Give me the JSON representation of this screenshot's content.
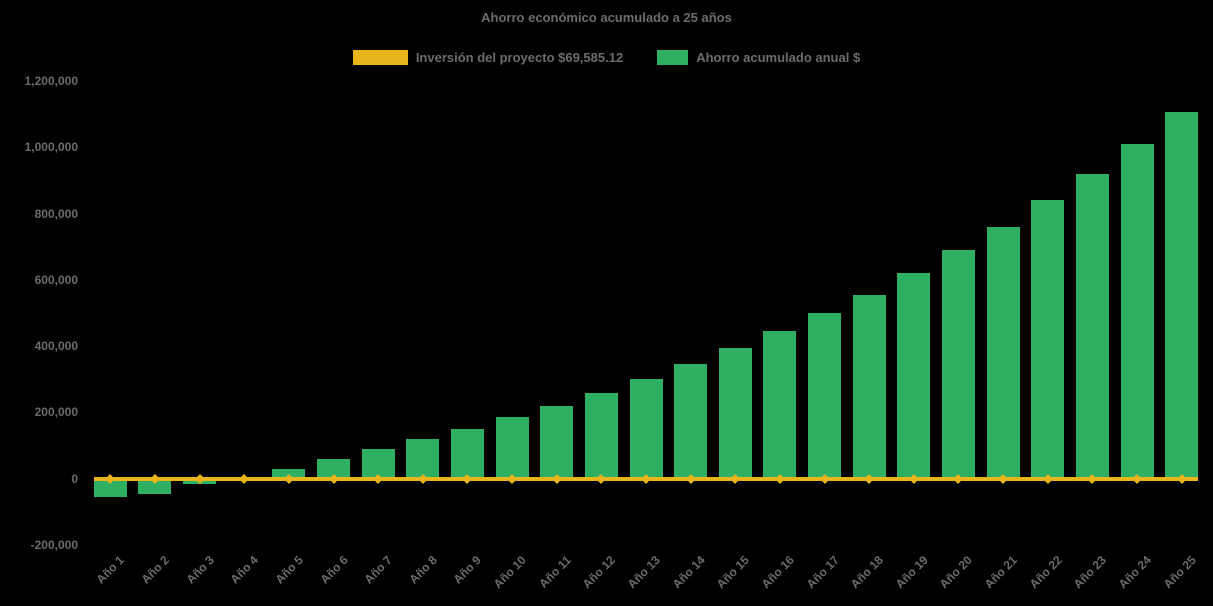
{
  "title": "Ahorro económico acumulado a 25 años",
  "colors": {
    "background": "#000000",
    "bar": "#2FAF62",
    "line": "#E8B61B",
    "text": "#6C6C6C"
  },
  "legend": [
    {
      "label": "Inversión del proyecto $69,585.12",
      "color_key": "line",
      "swatch": "wide-line"
    },
    {
      "label": "Ahorro acumulado anual $",
      "color_key": "bar",
      "swatch": "bar"
    }
  ],
  "investment_amount_text": "$69,585.12",
  "chart_data": {
    "type": "bar",
    "title": "Ahorro económico acumulado a 25 años",
    "categories": [
      "Año 1",
      "Año 2",
      "Año 3",
      "Año 4",
      "Año 5",
      "Año 6",
      "Año 7",
      "Año 8",
      "Año 9",
      "Año 10",
      "Año 11",
      "Año 12",
      "Año 13",
      "Año 14",
      "Año 15",
      "Año 16",
      "Año 17",
      "Año 18",
      "Año 19",
      "Año 20",
      "Año 21",
      "Año 22",
      "Año 23",
      "Año 24",
      "Año 25"
    ],
    "series": [
      {
        "name": "Inversión del proyecto $69,585.12",
        "type": "line",
        "marker": "diamond",
        "color": "#E8B61B",
        "constant_value": 0
      },
      {
        "name": "Ahorro acumulado anual $",
        "type": "bar",
        "color": "#2FAF62",
        "values": [
          -55000,
          -45000,
          -15000,
          -3000,
          30000,
          60000,
          90000,
          120000,
          150000,
          185000,
          220000,
          260000,
          300000,
          345000,
          395000,
          445000,
          500000,
          555000,
          620000,
          690000,
          760000,
          840000,
          920000,
          1010000,
          1105000
        ]
      }
    ],
    "ylim": [
      -200000,
      1200000
    ],
    "y_ticks": [
      1200000,
      1000000,
      800000,
      600000,
      400000,
      200000,
      0,
      -200000
    ],
    "y_tick_labels": [
      "1,200,000",
      "1,000,000",
      "800,000",
      "600,000",
      "400,000",
      "200,000",
      "0",
      "-200,000"
    ],
    "xlabel": "",
    "ylabel": "",
    "grid": false,
    "legend_position": "top-center"
  }
}
